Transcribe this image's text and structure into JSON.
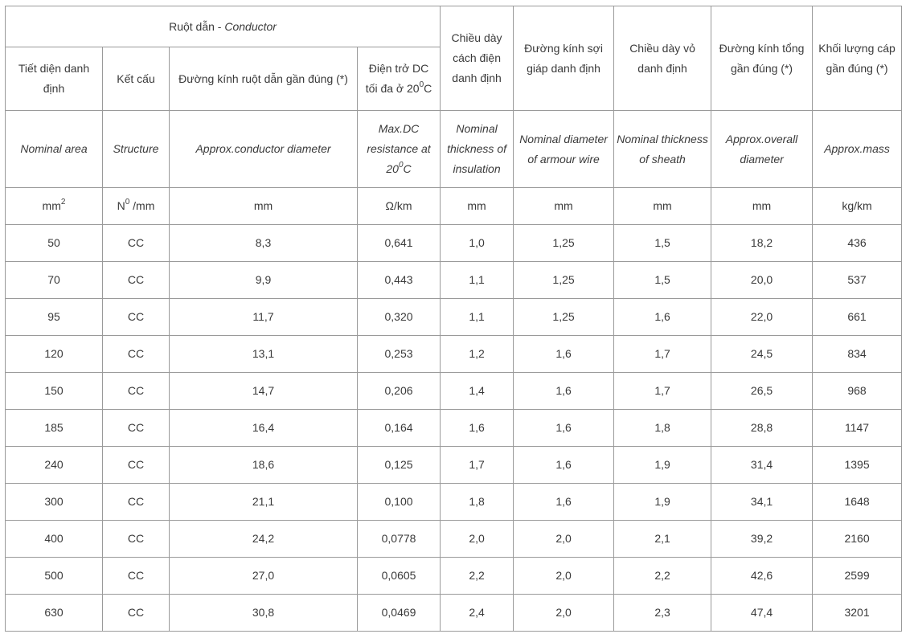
{
  "header": {
    "conductor_vn": "Ruột dẫn - ",
    "conductor_en": "Conductor",
    "insulation_vn": "Chiều dày cách điện danh định",
    "armour_vn": "Đường kính sợi giáp danh định",
    "sheath_vn": "Chiều dày vỏ danh định",
    "overall_vn": "Đường kính tổng gần đúng (*)",
    "mass_vn": "Khối lượng cáp gần đúng (*)",
    "area_vn": "Tiết diện danh định",
    "structure_vn": "Kết cấu",
    "cond_diam_vn": "Đường kính ruột dẫn gần đúng (*)",
    "resistance_vn_1": "Điện trở DC",
    "resistance_vn_2": "tối đa ở 20",
    "resistance_vn_sup": "0",
    "resistance_vn_unit": "C"
  },
  "english": {
    "area": "Nominal area",
    "structure": "Structure",
    "cond_diam": "Approx.conductor diameter",
    "resistance_1": "Max.DC",
    "resistance_2": "resistance at",
    "resistance_3": "20",
    "resistance_sup": "0",
    "resistance_unit": "C",
    "insulation": "Nominal thickness of insulation",
    "armour": "Nominal diameter of armour wire",
    "sheath": "Nominal thickness of sheath",
    "overall": "Approx.overall diameter",
    "mass": "Approx.mass"
  },
  "units": {
    "area": "mm",
    "area_sup": "2",
    "structure_pre": "N",
    "structure_sup": "0",
    "structure_post": " /mm",
    "cond_diam": "mm",
    "resistance": "Ω/km",
    "insulation": "mm",
    "armour": "mm",
    "sheath": "mm",
    "overall": "mm",
    "mass": "kg/km"
  },
  "rows": [
    [
      "50",
      "CC",
      "8,3",
      "0,641",
      "1,0",
      "1,25",
      "1,5",
      "18,2",
      "436"
    ],
    [
      "70",
      "CC",
      "9,9",
      "0,443",
      "1,1",
      "1,25",
      "1,5",
      "20,0",
      "537"
    ],
    [
      "95",
      "CC",
      "11,7",
      "0,320",
      "1,1",
      "1,25",
      "1,6",
      "22,0",
      "661"
    ],
    [
      "120",
      "CC",
      "13,1",
      "0,253",
      "1,2",
      "1,6",
      "1,7",
      "24,5",
      "834"
    ],
    [
      "150",
      "CC",
      "14,7",
      "0,206",
      "1,4",
      "1,6",
      "1,7",
      "26,5",
      "968"
    ],
    [
      "185",
      "CC",
      "16,4",
      "0,164",
      "1,6",
      "1,6",
      "1,8",
      "28,8",
      "1147"
    ],
    [
      "240",
      "CC",
      "18,6",
      "0,125",
      "1,7",
      "1,6",
      "1,9",
      "31,4",
      "1395"
    ],
    [
      "300",
      "CC",
      "21,1",
      "0,100",
      "1,8",
      "1,6",
      "1,9",
      "34,1",
      "1648"
    ],
    [
      "400",
      "CC",
      "24,2",
      "0,0778",
      "2,0",
      "2,0",
      "2,1",
      "39,2",
      "2160"
    ],
    [
      "500",
      "CC",
      "27,0",
      "0,0605",
      "2,2",
      "2,0",
      "2,2",
      "42,6",
      "2599"
    ],
    [
      "630",
      "CC",
      "30,8",
      "0,0469",
      "2,4",
      "2,0",
      "2,3",
      "47,4",
      "3201"
    ]
  ]
}
